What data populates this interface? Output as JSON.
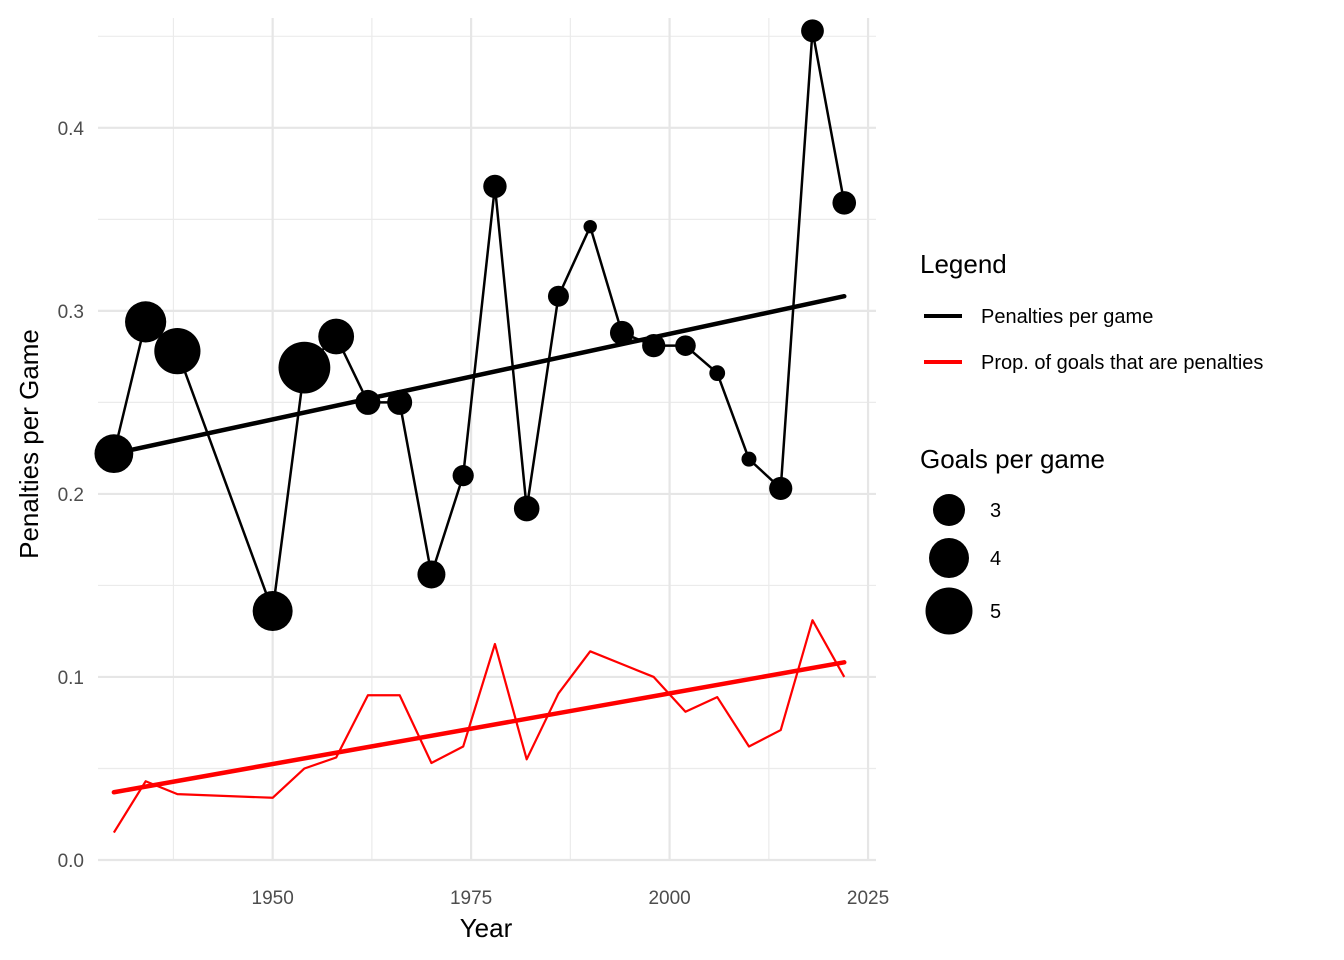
{
  "chart_data": {
    "type": "line",
    "xlabel": "Year",
    "ylabel": "Penalties per Game",
    "xlim": [
      1928,
      2026
    ],
    "ylim": [
      0,
      0.46
    ],
    "x_ticks": [
      1950,
      1975,
      2000,
      2025
    ],
    "x_tick_labels": [
      "1950",
      "1975",
      "2000",
      "2025"
    ],
    "y_ticks": [
      0,
      0.1,
      0.2,
      0.3,
      0.4
    ],
    "y_tick_labels": [
      "0.0",
      "0.1",
      "0.2",
      "0.3",
      "0.4"
    ],
    "grid": true,
    "legend_placement": "right",
    "legend": {
      "title": "Legend",
      "entries": [
        {
          "label": "Penalties per game",
          "color": "#000000"
        },
        {
          "label": "Prop. of goals that are penalties",
          "color": "#ff0000"
        }
      ]
    },
    "size_legend": {
      "title": "Goals per game",
      "entries": [
        {
          "label": "3",
          "value": 3
        },
        {
          "label": "4",
          "value": 4
        },
        {
          "label": "5",
          "value": 5
        }
      ]
    },
    "series": [
      {
        "name": "Penalties per game",
        "color": "#000000",
        "x": [
          1930,
          1934,
          1938,
          1950,
          1954,
          1958,
          1962,
          1966,
          1970,
          1974,
          1978,
          1982,
          1986,
          1990,
          1994,
          1998,
          2002,
          2006,
          2010,
          2014,
          2018,
          2022
        ],
        "y": [
          0.222,
          0.294,
          0.278,
          0.136,
          0.269,
          0.286,
          0.25,
          0.25,
          0.156,
          0.21,
          0.368,
          0.192,
          0.308,
          0.346,
          0.288,
          0.281,
          0.281,
          0.266,
          0.219,
          0.203,
          0.453,
          0.359
        ],
        "goals_per_game": [
          3.89,
          4.12,
          4.67,
          4.0,
          5.38,
          3.6,
          2.78,
          2.78,
          2.97,
          2.55,
          2.68,
          2.81,
          2.54,
          2.21,
          2.71,
          2.67,
          2.52,
          2.3,
          2.27,
          2.67,
          2.64,
          2.69
        ]
      },
      {
        "name": "Prop. of goals that are penalties",
        "color": "#ff0000",
        "x": [
          1930,
          1934,
          1938,
          1950,
          1954,
          1958,
          1962,
          1966,
          1970,
          1974,
          1978,
          1982,
          1986,
          1990,
          1994,
          1998,
          2002,
          2006,
          2010,
          2014,
          2018,
          2022
        ],
        "y": [
          0.015,
          0.043,
          0.036,
          0.034,
          0.05,
          0.056,
          0.09,
          0.09,
          0.053,
          0.062,
          0.118,
          0.055,
          0.091,
          0.114,
          0.107,
          0.1,
          0.081,
          0.089,
          0.062,
          0.071,
          0.131,
          0.1
        ]
      }
    ],
    "trend_lines": [
      {
        "name": "Penalties per game",
        "color": "#000000",
        "x": [
          1930,
          2022
        ],
        "y": [
          0.222,
          0.308
        ]
      },
      {
        "name": "Prop. of goals that are penalties",
        "color": "#ff0000",
        "x": [
          1930,
          2022
        ],
        "y": [
          0.037,
          0.108
        ]
      }
    ]
  }
}
